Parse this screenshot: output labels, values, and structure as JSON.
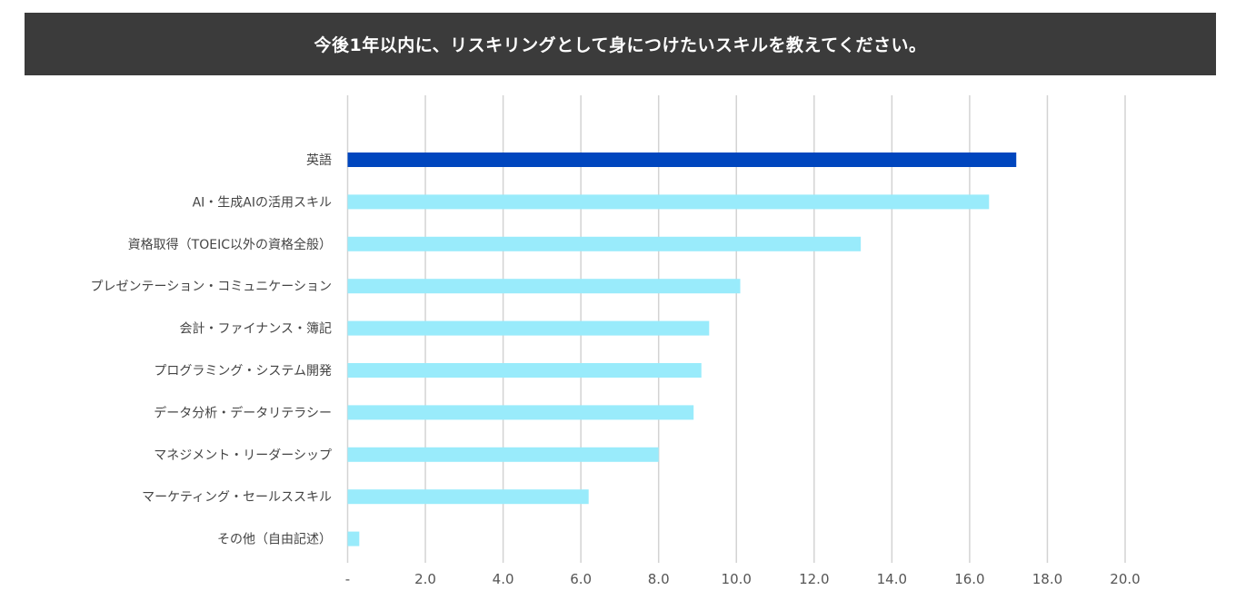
{
  "chart_data": {
    "type": "bar",
    "orientation": "horizontal",
    "title": "今後1年以内に、リスキリングとして身につけたいスキルを教えてください。",
    "categories": [
      "英語",
      "AI・生成AIの活用スキル",
      "資格取得（TOEIC以外の資格全般）",
      "プレゼンテーション・コミュニケーション",
      "会計・ファイナンス・簿記",
      "プログラミング・システム開発",
      "データ分析・データリテラシー",
      "マネジメント・リーダーシップ",
      "マーケティング・セールススキル",
      "その他（自由記述）"
    ],
    "values": [
      17.2,
      16.5,
      13.2,
      10.1,
      9.3,
      9.1,
      8.9,
      8.0,
      6.2,
      0.3
    ],
    "xlim": [
      0,
      20
    ],
    "xticks": [
      0,
      2,
      4,
      6,
      8,
      10,
      12,
      14,
      16,
      18,
      20
    ],
    "xtick_labels": [
      "-",
      "2.0",
      "4.0",
      "6.0",
      "8.0",
      "10.0",
      "12.0",
      "14.0",
      "16.0",
      "18.0",
      "20.0"
    ],
    "grid": "vertical",
    "legend": "none",
    "colors": {
      "highlight": "#0046BE",
      "default": "#99EBFB",
      "grid": "#D3D3D3",
      "title_bg": "#3B3B3B"
    }
  }
}
